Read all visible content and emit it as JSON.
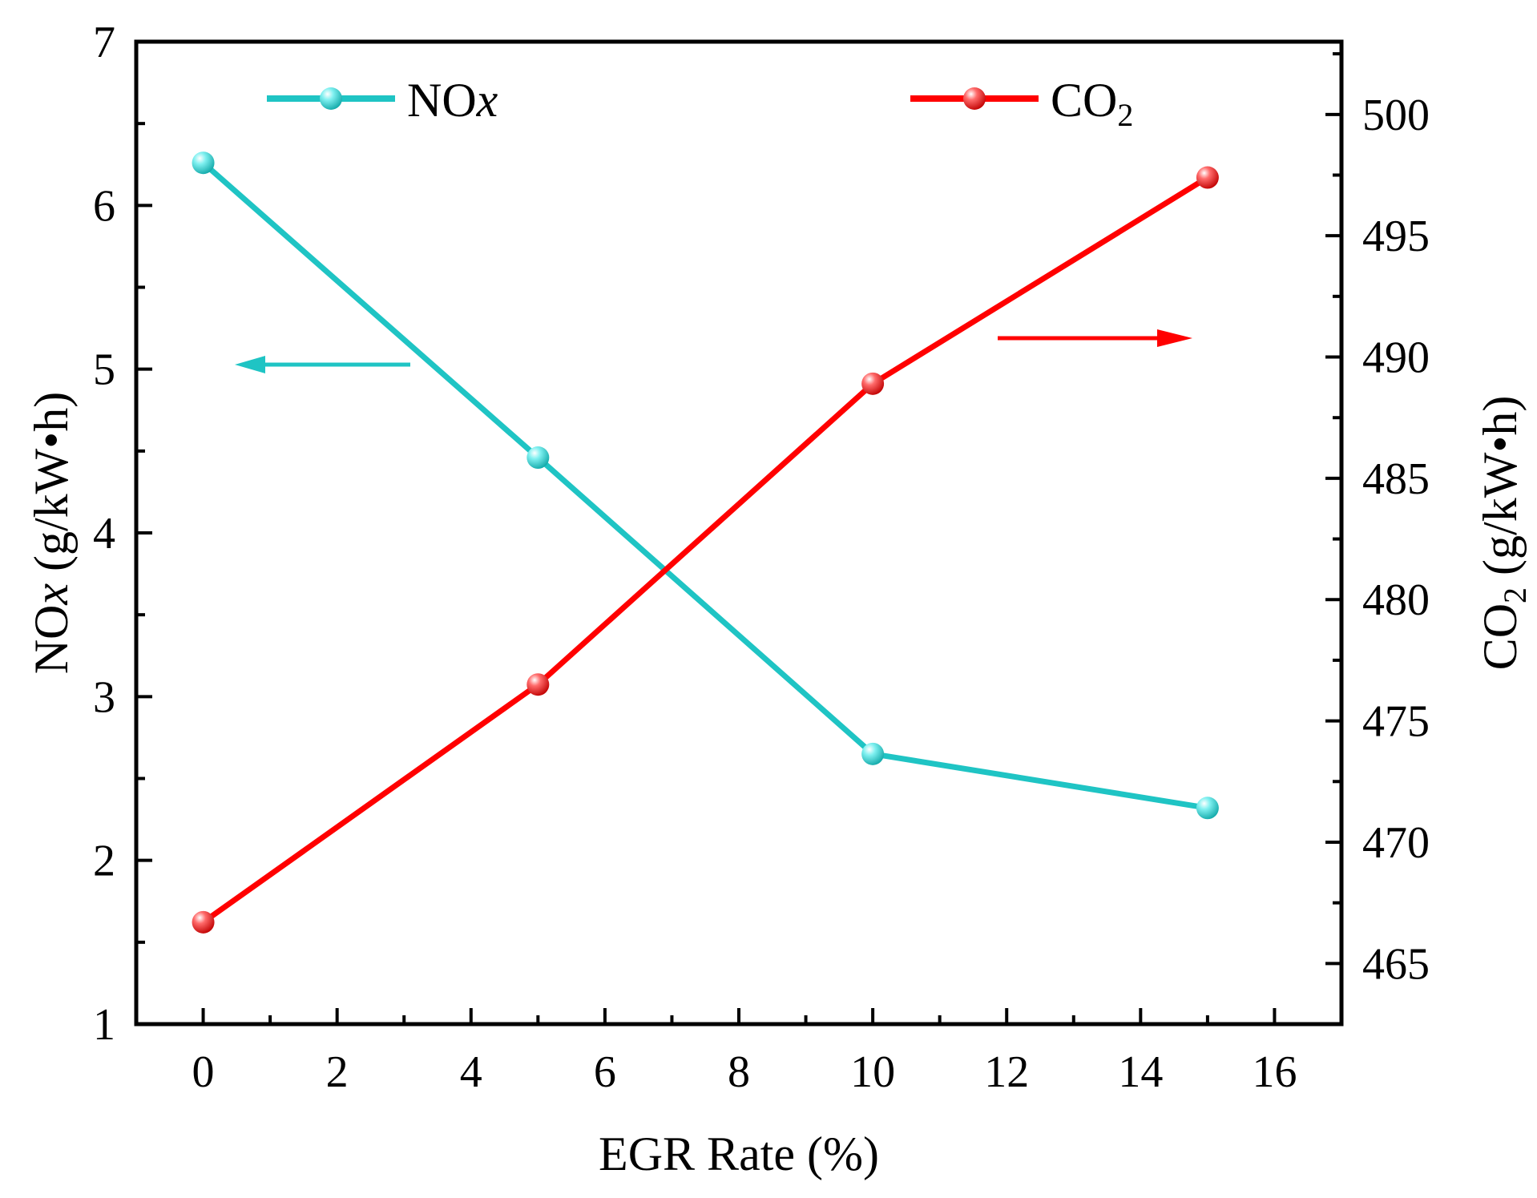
{
  "chart_data": {
    "type": "line",
    "title": "",
    "xlabel": "EGR Rate (%)",
    "xlim": [
      -1,
      17
    ],
    "xticks": [
      0,
      2,
      4,
      6,
      8,
      10,
      12,
      14,
      16
    ],
    "y_left": {
      "label_main": "NO",
      "label_italic": "x",
      "label_unit": " (g/kW•h)",
      "lim": [
        1,
        7
      ],
      "ticks": [
        1,
        2,
        3,
        4,
        5,
        6,
        7
      ]
    },
    "y_right": {
      "label_main": "CO",
      "label_sub": "2",
      "label_unit": " (g/kW•h)",
      "lim": [
        462.5,
        503
      ],
      "ticks": [
        465,
        470,
        475,
        480,
        485,
        490,
        495,
        500
      ]
    },
    "series": [
      {
        "name": "NOx",
        "legend_main": "NO",
        "legend_italic": "x",
        "axis": "left",
        "color": "#1fc4c4",
        "x": [
          0,
          5,
          10,
          15
        ],
        "values": [
          6.26,
          4.46,
          2.65,
          2.32
        ]
      },
      {
        "name": "CO2",
        "legend_main": "CO",
        "legend_sub": "2",
        "axis": "right",
        "color": "#ff0000",
        "x": [
          0,
          5,
          10,
          15
        ],
        "values": [
          466.7,
          476.5,
          488.9,
          497.4
        ]
      }
    ],
    "annotations": [
      {
        "type": "arrow",
        "direction": "left",
        "series": "NOx",
        "color": "#1fc4c4"
      },
      {
        "type": "arrow",
        "direction": "right",
        "series": "CO2",
        "color": "#ff0000"
      }
    ],
    "legend_position": "top",
    "grid": false
  }
}
